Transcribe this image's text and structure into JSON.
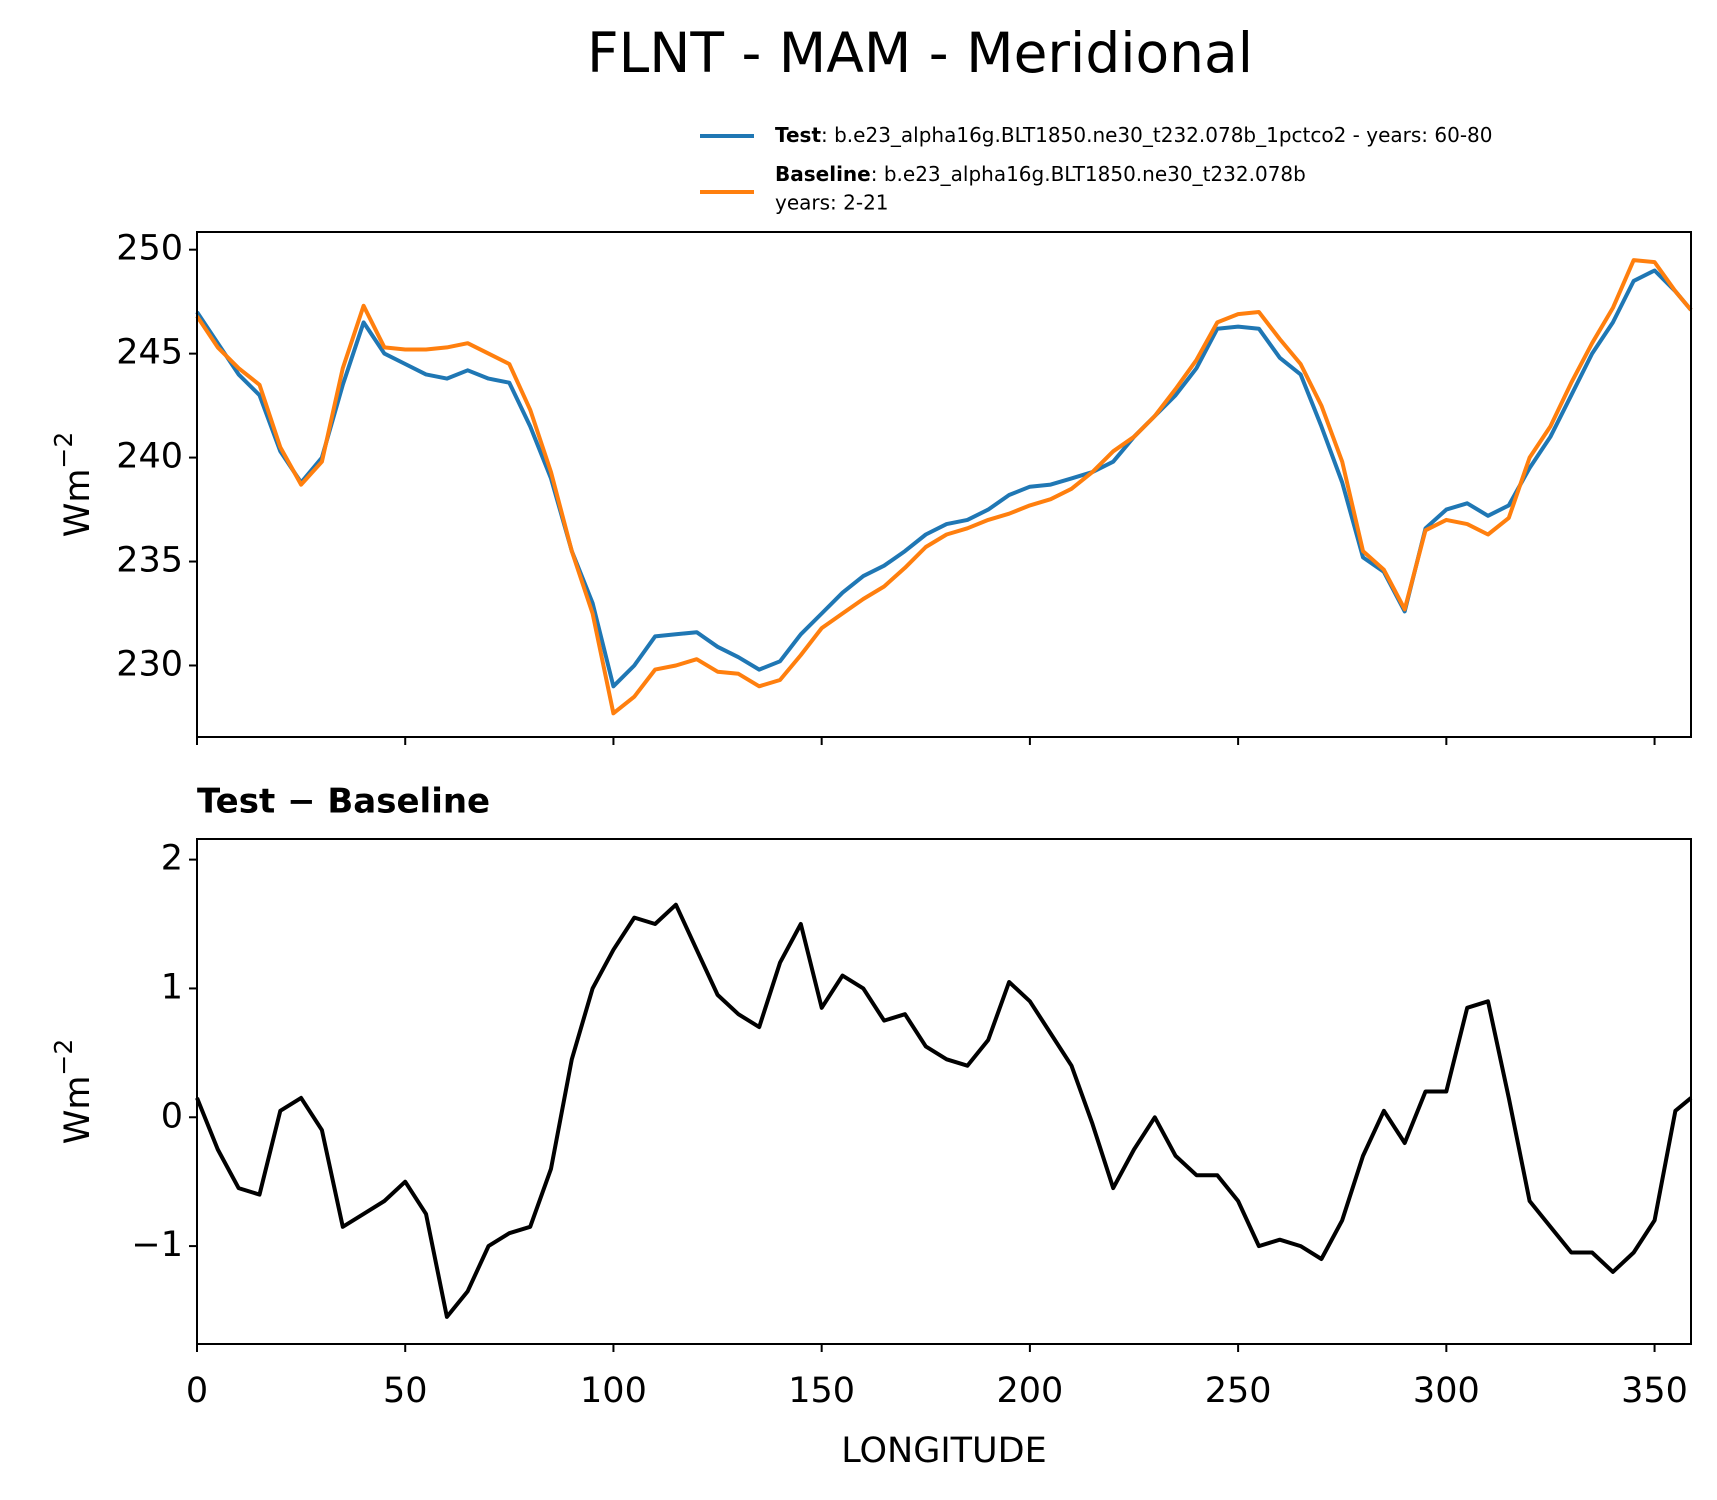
{
  "chart_data": [
    {
      "type": "line",
      "title": "FLNT - MAM - Meridional",
      "ylabel": "Wm",
      "ylabel_sup": "−2",
      "x": [
        0,
        5,
        10,
        15,
        20,
        25,
        30,
        35,
        40,
        45,
        50,
        55,
        60,
        65,
        70,
        75,
        80,
        85,
        90,
        95,
        100,
        105,
        110,
        115,
        120,
        125,
        130,
        135,
        140,
        145,
        150,
        155,
        160,
        165,
        170,
        175,
        180,
        185,
        190,
        195,
        200,
        205,
        210,
        215,
        220,
        225,
        230,
        235,
        240,
        245,
        250,
        255,
        260,
        265,
        270,
        275,
        280,
        285,
        290,
        295,
        300,
        305,
        310,
        315,
        320,
        325,
        330,
        335,
        340,
        345,
        350,
        355,
        358.75
      ],
      "series": [
        {
          "name": "Test",
          "description": [
            ": b.e23_alpha16g.BLT1850.ne30_t232.078b_1pctco2 - years: 60-80"
          ],
          "color": "#1f77b4",
          "values": [
            247,
            245.5,
            244,
            243,
            240.3,
            238.8,
            240,
            243.5,
            246.5,
            245,
            244.5,
            244,
            243.8,
            244.2,
            243.8,
            243.6,
            241.5,
            239,
            235.5,
            233,
            229,
            230,
            231.4,
            231.5,
            231.6,
            230.9,
            230.4,
            229.8,
            230.2,
            231.5,
            232.5,
            233.5,
            234.3,
            234.8,
            235.5,
            236.3,
            236.8,
            237,
            237.5,
            238.2,
            238.6,
            238.7,
            239,
            239.3,
            239.8,
            241,
            242,
            243,
            244.3,
            246.2,
            246.3,
            246.2,
            244.8,
            244,
            241.5,
            238.8,
            235.2,
            234.5,
            232.6,
            236.6,
            237.5,
            237.8,
            237.2,
            237.7,
            239.5,
            241,
            243,
            245,
            246.5,
            248.5,
            249,
            248,
            247.1
          ]
        },
        {
          "name": "Baseline",
          "description": [
            ": b.e23_alpha16g.BLT1850.ne30_t232.078b",
            "years: 2-21"
          ],
          "color": "#ff7f0e",
          "values": [
            246.8,
            245.3,
            244.3,
            243.5,
            240.5,
            238.7,
            239.8,
            244.3,
            247.3,
            245.3,
            245.2,
            245.2,
            245.3,
            245.5,
            245,
            244.5,
            242.3,
            239.3,
            235.5,
            232.5,
            227.7,
            228.5,
            229.8,
            230,
            230.3,
            229.7,
            229.6,
            229,
            229.3,
            230.5,
            231.8,
            232.5,
            233.2,
            233.8,
            234.7,
            235.7,
            236.3,
            236.6,
            237,
            237.3,
            237.7,
            238,
            238.5,
            239.3,
            240.3,
            241,
            242,
            243.3,
            244.7,
            246.5,
            246.9,
            247,
            245.7,
            244.5,
            242.5,
            239.8,
            235.5,
            234.6,
            232.7,
            236.5,
            237,
            236.8,
            236.3,
            237.1,
            240,
            241.5,
            243.6,
            245.5,
            247.2,
            249.5,
            249.4,
            248,
            247.1
          ]
        }
      ],
      "xlim": [
        0,
        358.75
      ],
      "xticks": [
        0,
        50,
        100,
        150,
        200,
        250,
        300,
        350
      ],
      "ylim": [
        226.56,
        250.85
      ],
      "yticks": [
        230,
        235,
        240,
        245,
        250
      ]
    },
    {
      "type": "line",
      "title": "Test − Baseline",
      "xlabel": "LONGITUDE",
      "ylabel": "Wm",
      "ylabel_sup": "−2",
      "x": [
        0,
        5,
        10,
        15,
        20,
        25,
        30,
        35,
        40,
        45,
        50,
        55,
        60,
        65,
        70,
        75,
        80,
        85,
        90,
        95,
        100,
        105,
        110,
        115,
        120,
        125,
        130,
        135,
        140,
        145,
        150,
        155,
        160,
        165,
        170,
        175,
        180,
        185,
        190,
        195,
        200,
        205,
        210,
        215,
        220,
        225,
        230,
        235,
        240,
        245,
        250,
        255,
        260,
        265,
        270,
        275,
        280,
        285,
        290,
        295,
        300,
        305,
        310,
        315,
        320,
        325,
        330,
        335,
        340,
        345,
        350,
        355,
        358.75
      ],
      "series": [
        {
          "color": "#000000",
          "values": [
            0.15,
            -0.25,
            -0.55,
            -0.6,
            0.05,
            0.15,
            -0.1,
            -0.85,
            -0.75,
            -0.65,
            -0.5,
            -0.75,
            -1.55,
            -1.35,
            -1.0,
            -0.9,
            -0.85,
            -0.4,
            0.45,
            1.0,
            1.3,
            1.55,
            1.5,
            1.65,
            1.3,
            0.95,
            0.8,
            0.7,
            1.2,
            1.5,
            0.85,
            1.1,
            1.0,
            0.75,
            0.8,
            0.55,
            0.45,
            0.4,
            0.6,
            1.05,
            0.9,
            0.65,
            0.4,
            -0.05,
            -0.55,
            -0.25,
            0.0,
            -0.3,
            -0.45,
            -0.45,
            -0.65,
            -1.0,
            -0.95,
            -1.0,
            -1.1,
            -0.8,
            -0.3,
            0.05,
            -0.2,
            0.2,
            0.2,
            0.85,
            0.9,
            0.15,
            -0.65,
            -0.85,
            -1.05,
            -1.05,
            -1.2,
            -1.05,
            -0.8,
            0.05,
            0.15
          ]
        }
      ],
      "xlim": [
        0,
        358.75
      ],
      "xticks": [
        0,
        50,
        100,
        150,
        200,
        250,
        300,
        350
      ],
      "ylim": [
        -1.76,
        2.16
      ],
      "yticks": [
        {
          "value": -1,
          "label": "−1"
        },
        0,
        1,
        2
      ]
    }
  ]
}
